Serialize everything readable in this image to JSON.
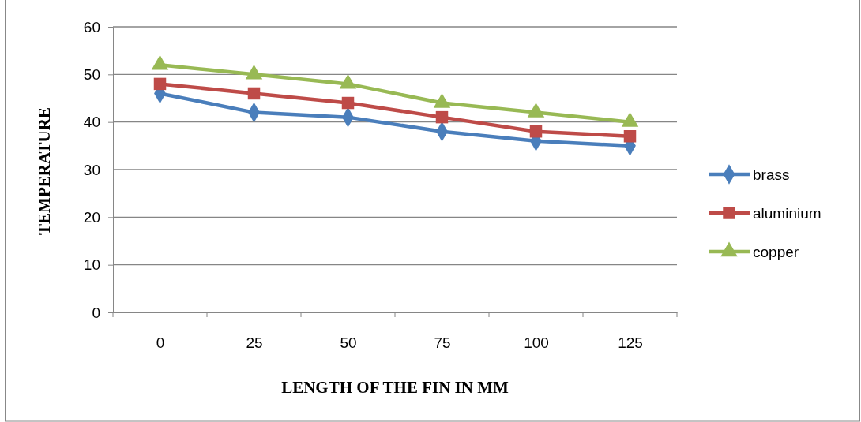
{
  "chart_data": {
    "type": "line",
    "xlabel": "LENGTH OF THE FIN IN MM",
    "ylabel": "TEMPERATURE",
    "categories": [
      "0",
      "25",
      "50",
      "75",
      "100",
      "125"
    ],
    "series": [
      {
        "name": "brass",
        "color": "#4a7ebb",
        "marker": "diamond",
        "values": [
          46,
          42,
          41,
          38,
          36,
          35
        ]
      },
      {
        "name": "aluminium",
        "color": "#be4b48",
        "marker": "square",
        "values": [
          48,
          46,
          44,
          41,
          38,
          37
        ]
      },
      {
        "name": "copper",
        "color": "#98b954",
        "marker": "triangle",
        "values": [
          52,
          50,
          48,
          44,
          42,
          40
        ]
      }
    ],
    "ylim": [
      0,
      60
    ],
    "yticks": [
      0,
      10,
      20,
      30,
      40,
      50,
      60
    ],
    "grid": "y",
    "legend": "right"
  }
}
